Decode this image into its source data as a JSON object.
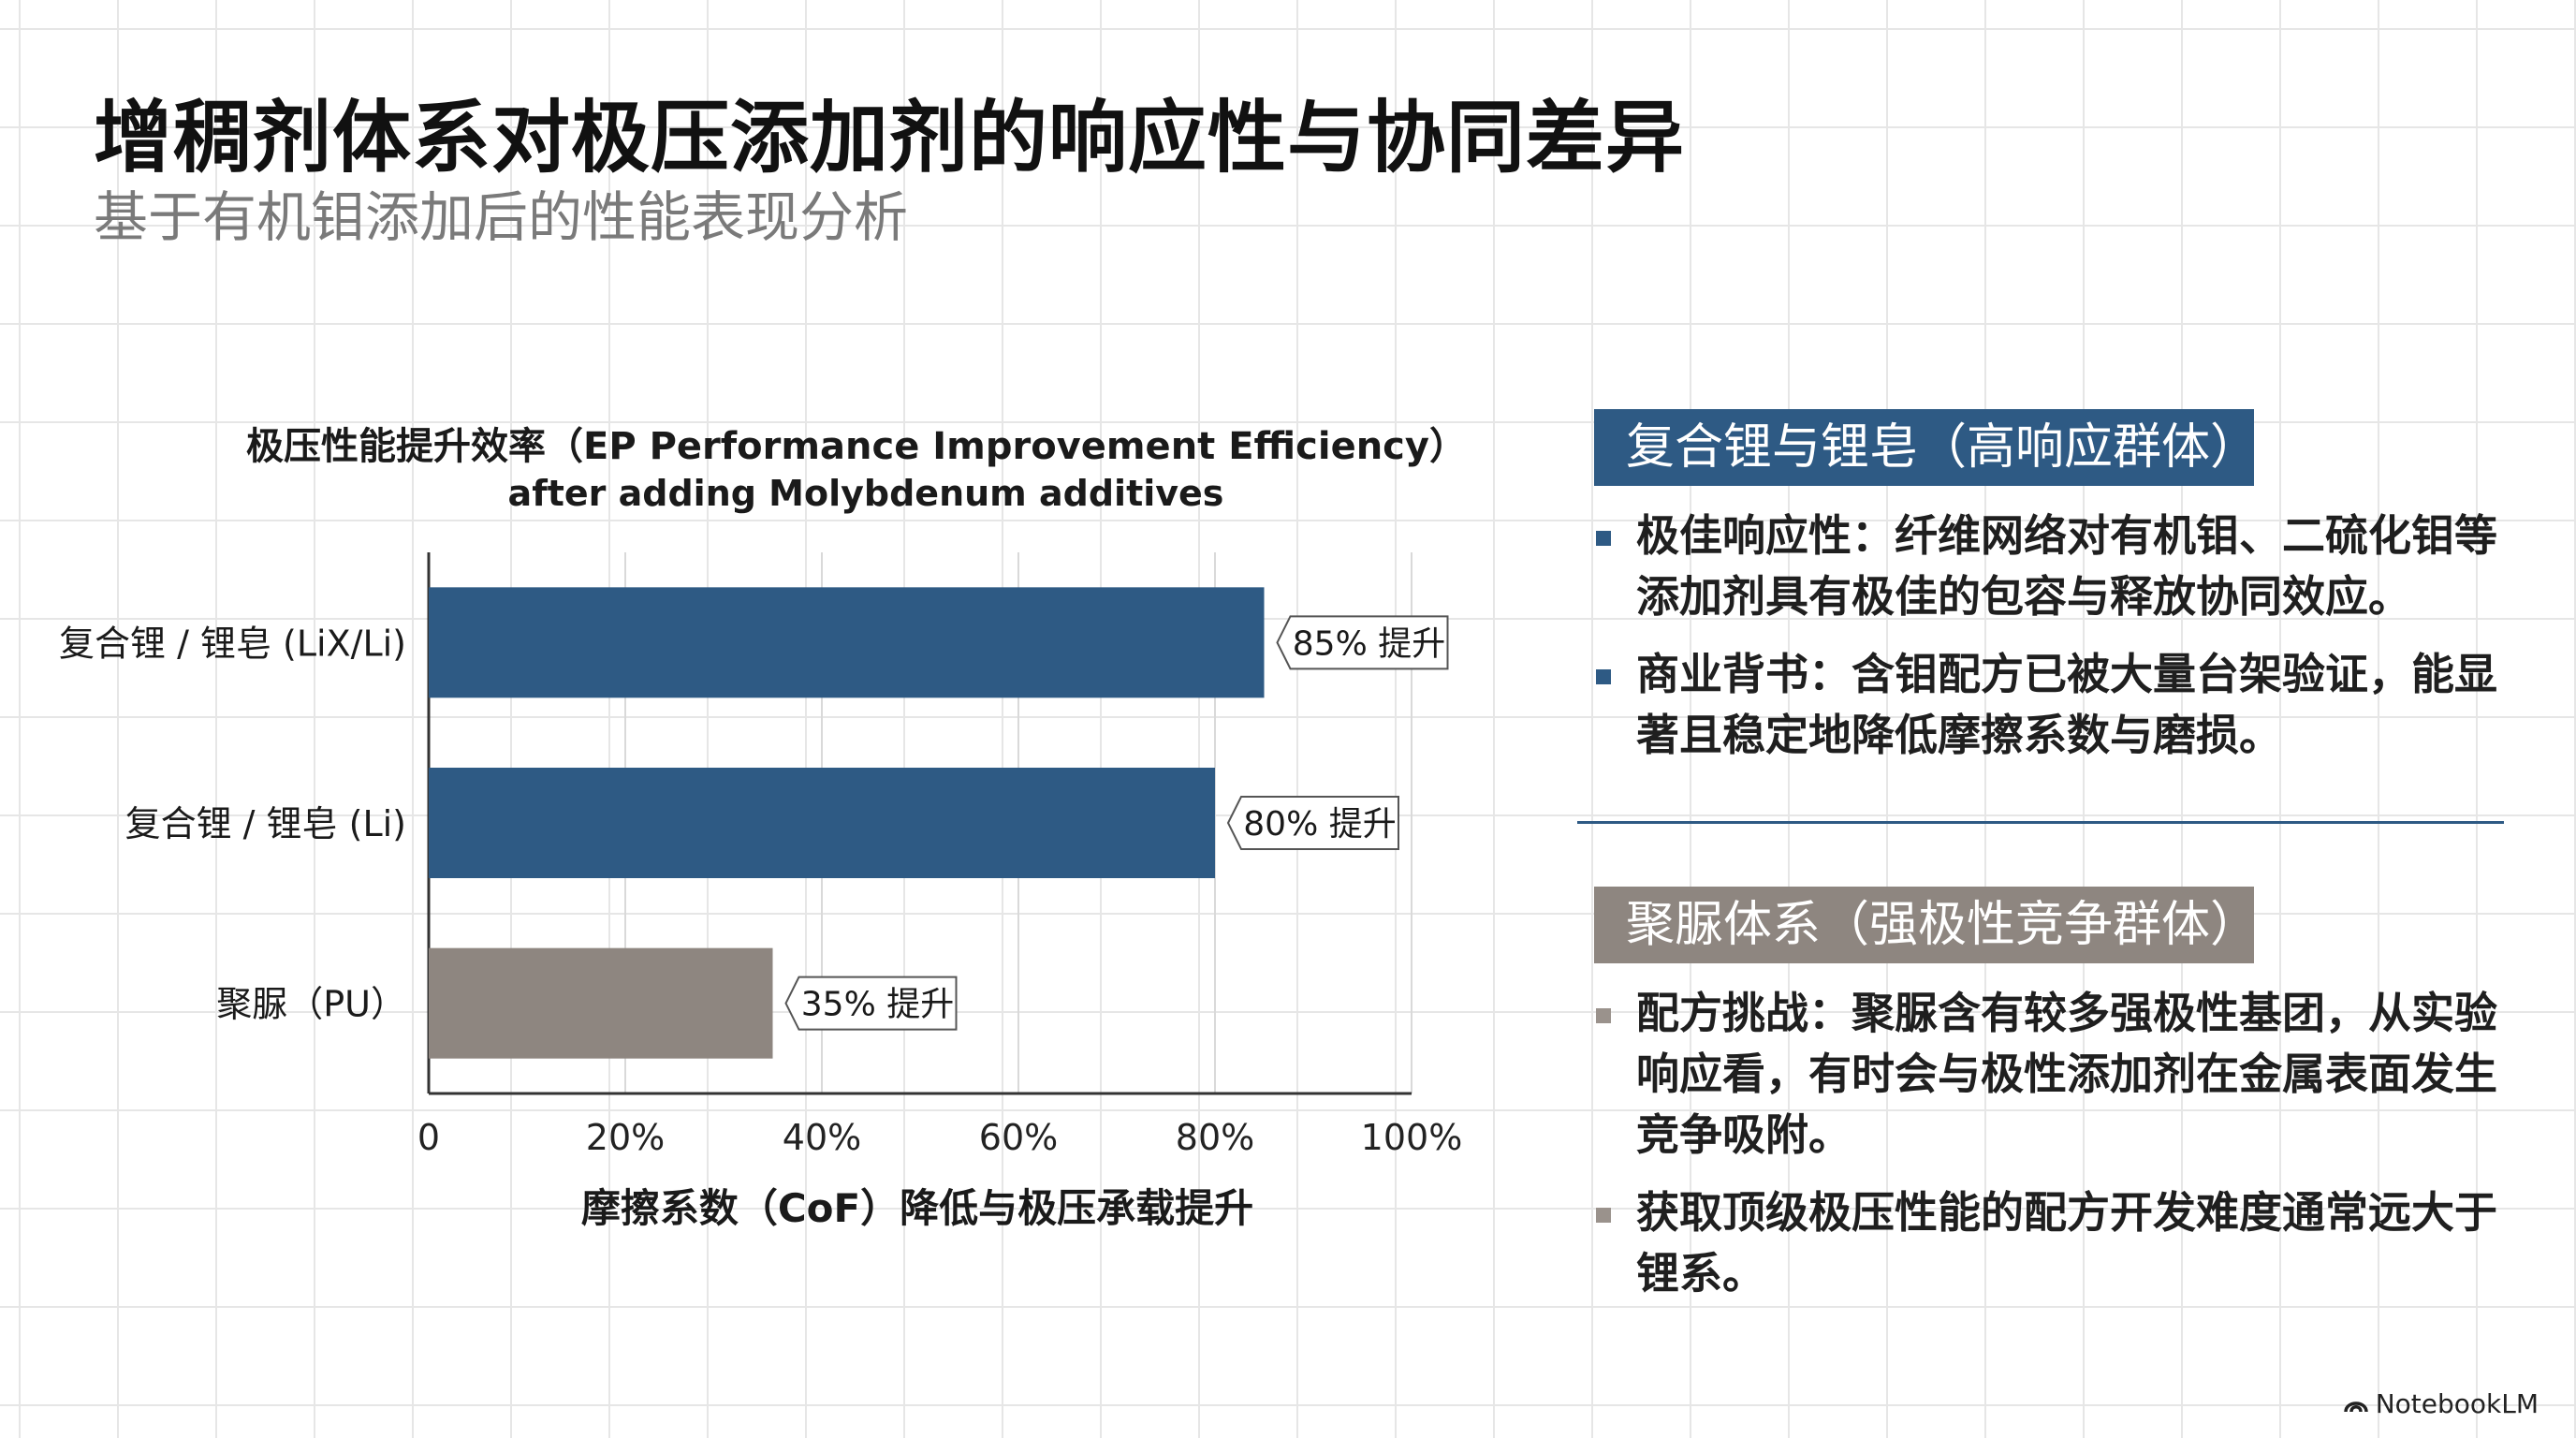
{
  "header": {
    "title": "增稠剂体系对极压添加剂的响应性与协同差异",
    "subtitle": "基于有机钼添加后的性能表现分析"
  },
  "chart_data": {
    "type": "bar",
    "orientation": "horizontal",
    "title": "极压性能提升效率（EP Performance Improvement Efficiency）",
    "subtitle": "after adding Molybdenum additives",
    "xlabel": "摩擦系数（CoF）降低与极压承载提升",
    "ylabel": "",
    "categories": [
      "复合锂 / 锂皂 (LiX/Li)",
      "复合锂 / 锂皂 (Li)",
      "聚脲（PU）"
    ],
    "values": [
      85,
      80,
      35
    ],
    "data_labels": [
      "85% 提升",
      "80% 提升",
      "35% 提升"
    ],
    "bar_colors": [
      "#2e5a84",
      "#2e5a84",
      "#8e8680"
    ],
    "xlim": [
      0,
      100
    ],
    "x_ticks": [
      0,
      20,
      40,
      60,
      80,
      100
    ],
    "x_tick_labels": [
      "0",
      "20%",
      "40%",
      "60%",
      "80%",
      "100%"
    ],
    "grid": true
  },
  "panels": {
    "high": {
      "header": "复合锂与锂皂（高响应群体）",
      "color": "#2e5a84",
      "bullets": [
        "极佳响应性：纤维网络对有机钼、二硫化钼等添加剂具有极佳的包容与释放协同效应。",
        "商业背书：含钼配方已被大量台架验证，能显著且稳定地降低摩擦系数与磨损。"
      ]
    },
    "polar": {
      "header": "聚脲体系（强极性竞争群体）",
      "color": "#8e8680",
      "bullets": [
        "配方挑战：聚脲含有较多强极性基团，从实验响应看，有时会与极性添加剂在金属表面发生竞争吸附。",
        "获取顶级极压性能的配方开发难度通常远大于锂系。"
      ]
    }
  },
  "brand": {
    "name": "NotebookLM",
    "icon": "notebooklm-logo-icon"
  }
}
